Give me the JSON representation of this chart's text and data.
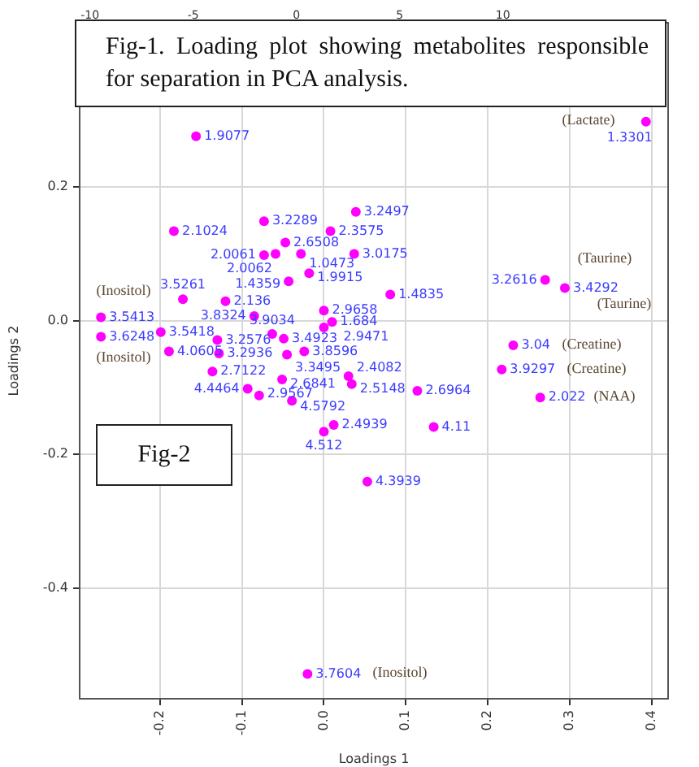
{
  "chart_data": {
    "type": "scatter",
    "title": "Fig-1. Loading plot showing metabolites responsible for separation in PCA analysis.",
    "xlabel": "Loadings 1",
    "ylabel": "Loadings 2",
    "xlim": [
      -0.298,
      0.42
    ],
    "ylim": [
      -0.566,
      0.446
    ],
    "xticks": [
      -0.2,
      -0.1,
      {
        "value": 0,
        "label": "0.0"
      },
      0.1,
      0.2,
      0.3,
      0.4
    ],
    "yticks": [
      -0.4,
      -0.2,
      {
        "value": 0,
        "label": "0.0"
      },
      0.2
    ],
    "x2lim": [
      -10.5,
      18
    ],
    "x2ticks": [
      -10,
      -5,
      0,
      5,
      10
    ],
    "grid": true,
    "legend": false,
    "marker": "circle",
    "series": [
      {
        "color": "#ff00ff",
        "x": [
          -0.156,
          0.393,
          -0.183,
          -0.073,
          0.039,
          0.008,
          -0.047,
          -0.073,
          -0.059,
          -0.028,
          0.037,
          -0.018,
          -0.043,
          0.081,
          -0.12,
          -0.172,
          0.27,
          0.294,
          -0.272,
          -0.272,
          -0.199,
          -0.085,
          0.0,
          0.01,
          0.0,
          -0.063,
          -0.13,
          -0.049,
          -0.024,
          -0.045,
          -0.189,
          -0.128,
          -0.136,
          -0.051,
          0.03,
          0.034,
          0.114,
          0.231,
          0.217,
          0.264,
          -0.093,
          -0.079,
          -0.039,
          0.012,
          0.0,
          0.134,
          0.053,
          -0.02
        ],
        "values": [
          0.276,
          0.298,
          0.134,
          0.149,
          0.163,
          0.134,
          0.117,
          0.098,
          0.1,
          0.1,
          0.1,
          0.071,
          0.059,
          0.039,
          0.029,
          0.032,
          0.061,
          0.049,
          0.005,
          -0.024,
          -0.017,
          0.007,
          0.015,
          -0.002,
          -0.01,
          -0.02,
          -0.029,
          -0.027,
          -0.046,
          -0.051,
          -0.046,
          -0.049,
          -0.076,
          -0.088,
          -0.083,
          -0.095,
          -0.105,
          -0.037,
          -0.073,
          -0.115,
          -0.102,
          -0.112,
          -0.12,
          -0.156,
          -0.166,
          -0.159,
          -0.241,
          -0.529
        ]
      }
    ],
    "annotations": [
      "Fig-2",
      {
        "text": "1.9077",
        "x": -0.156,
        "y": 0.276
      },
      {
        "text": "1.3301",
        "x": 0.393,
        "y": 0.298
      },
      {
        "text": "2.1024",
        "x": -0.183,
        "y": 0.134
      },
      {
        "text": "3.2289",
        "x": -0.073,
        "y": 0.149
      },
      {
        "text": "3.2497",
        "x": 0.039,
        "y": 0.163
      },
      {
        "text": "2.3575",
        "x": 0.008,
        "y": 0.134
      },
      {
        "text": "2.6508",
        "x": -0.047,
        "y": 0.117
      },
      {
        "text": "2.0061",
        "x": -0.073,
        "y": 0.098
      },
      {
        "text": "2.0062",
        "x": -0.059,
        "y": 0.1
      },
      {
        "text": "1.0473",
        "x": -0.028,
        "y": 0.1
      },
      {
        "text": "3.0175",
        "x": 0.037,
        "y": 0.1
      },
      {
        "text": "1.9915",
        "x": -0.018,
        "y": 0.071
      },
      {
        "text": "1.4359",
        "x": -0.043,
        "y": 0.059
      },
      {
        "text": "1.4835",
        "x": 0.081,
        "y": 0.039
      },
      {
        "text": "2.136",
        "x": -0.12,
        "y": 0.029
      },
      {
        "text": "3.5261",
        "x": -0.172,
        "y": 0.032
      },
      {
        "text": "3.2616",
        "x": 0.27,
        "y": 0.061
      },
      {
        "text": "3.4292",
        "x": 0.294,
        "y": 0.049
      },
      {
        "text": "3.5413",
        "x": -0.272,
        "y": 0.005
      },
      {
        "text": "3.6248",
        "x": -0.272,
        "y": -0.024
      },
      {
        "text": "3.5418",
        "x": -0.199,
        "y": -0.017
      },
      {
        "text": "3.8324",
        "x": -0.085,
        "y": 0.007
      },
      {
        "text": "2.9658",
        "x": 0.0,
        "y": 0.015
      },
      {
        "text": "1.684",
        "x": 0.01,
        "y": -0.002
      },
      {
        "text": "2.9471",
        "x": 0.0,
        "y": -0.01
      },
      {
        "text": "3.9034",
        "x": -0.063,
        "y": -0.02
      },
      {
        "text": "3.2576",
        "x": -0.13,
        "y": -0.029
      },
      {
        "text": "3.4923",
        "x": -0.049,
        "y": -0.027
      },
      {
        "text": "3.8596",
        "x": -0.024,
        "y": -0.046
      },
      {
        "text": "3.3495",
        "x": -0.045,
        "y": -0.051
      },
      {
        "text": "4.0605",
        "x": -0.189,
        "y": -0.046
      },
      {
        "text": "3.2936",
        "x": -0.128,
        "y": -0.049
      },
      {
        "text": "2.7122",
        "x": -0.136,
        "y": -0.076
      },
      {
        "text": "2.6841",
        "x": -0.051,
        "y": -0.088
      },
      {
        "text": "2.4082",
        "x": 0.03,
        "y": -0.083
      },
      {
        "text": "2.5148",
        "x": 0.034,
        "y": -0.095
      },
      {
        "text": "2.6964",
        "x": 0.114,
        "y": -0.105
      },
      {
        "text": "3.04",
        "x": 0.231,
        "y": -0.037
      },
      {
        "text": "3.9297",
        "x": 0.217,
        "y": -0.073
      },
      {
        "text": "2.022",
        "x": 0.264,
        "y": -0.115
      },
      {
        "text": "4.4464",
        "x": -0.093,
        "y": -0.102
      },
      {
        "text": "2.9567",
        "x": -0.079,
        "y": -0.112
      },
      {
        "text": "4.5792",
        "x": -0.039,
        "y": -0.12
      },
      {
        "text": "2.4939",
        "x": 0.012,
        "y": -0.156
      },
      {
        "text": "4.512",
        "x": 0.0,
        "y": -0.166
      },
      {
        "text": "4.11",
        "x": 0.134,
        "y": -0.159
      },
      {
        "text": "4.3939",
        "x": 0.053,
        "y": -0.241
      },
      {
        "text": "3.7604",
        "x": -0.02,
        "y": -0.529
      },
      "(Lactate)",
      "(Inositol)",
      "(Inositol)",
      "(Taurine)",
      "(Taurine)",
      "(Creatine)",
      "(Creatine)",
      "(NAA)",
      "(Inositol)"
    ]
  }
}
